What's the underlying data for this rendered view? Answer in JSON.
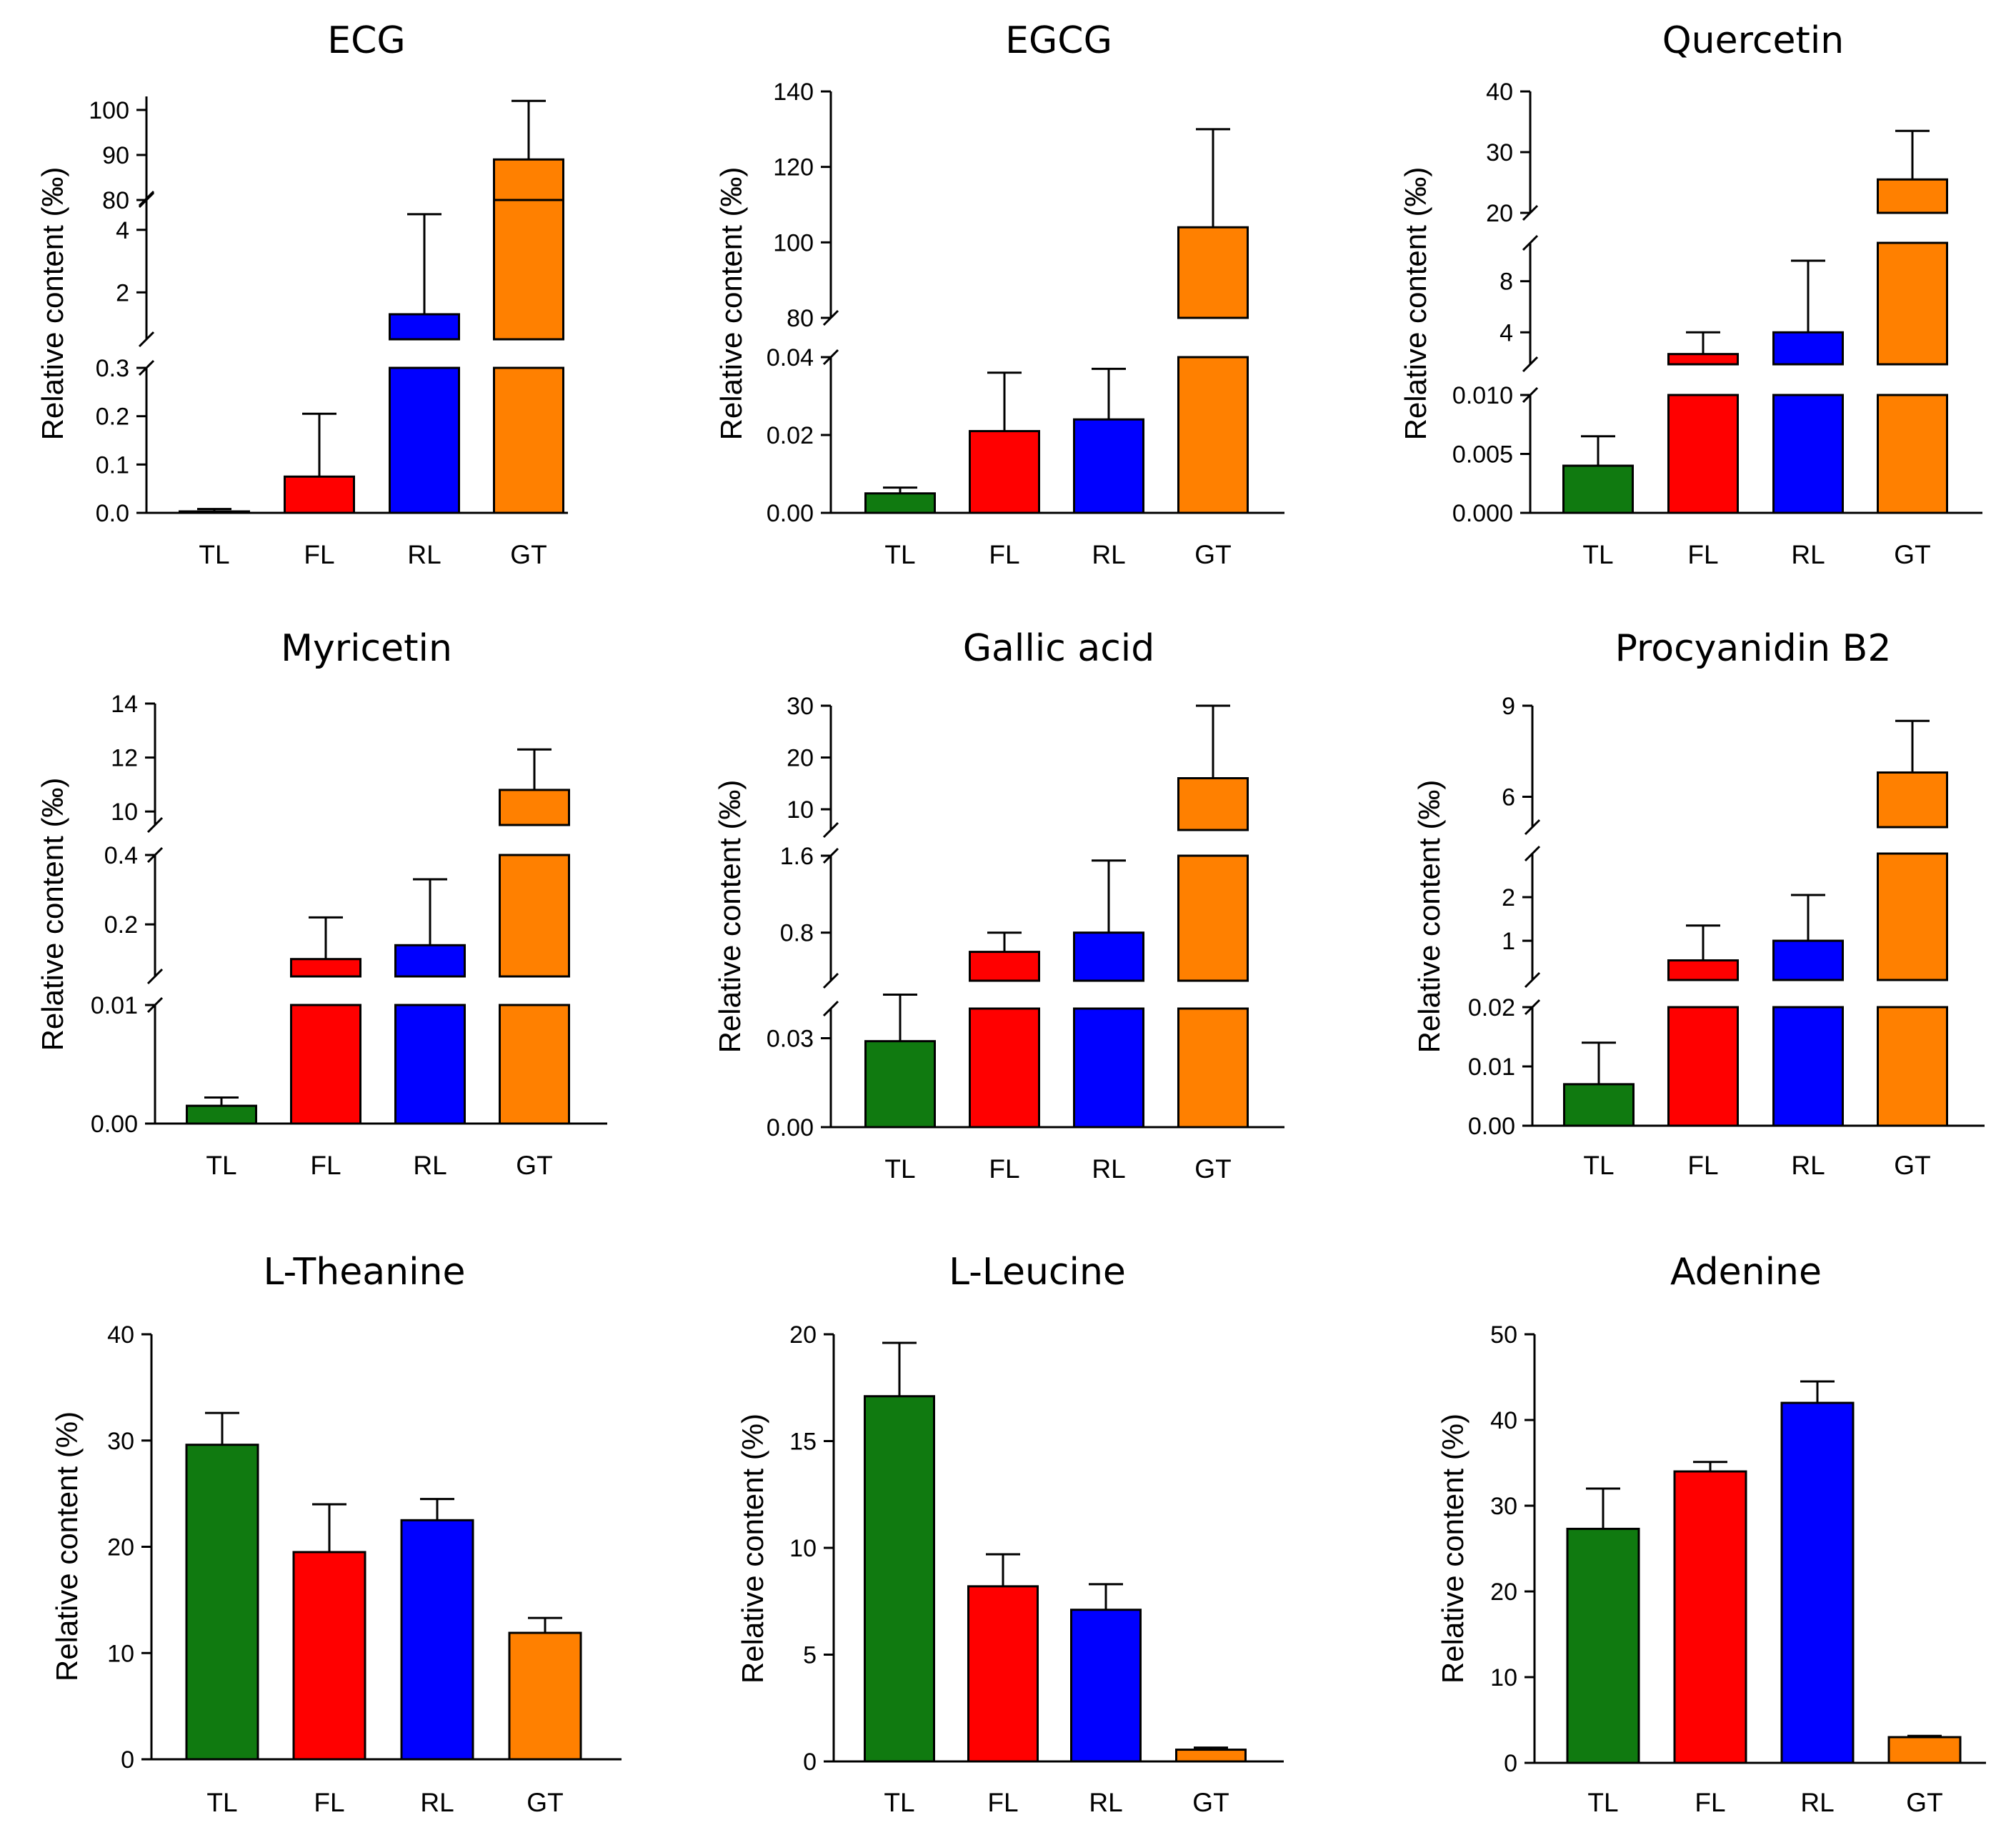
{
  "figure": {
    "categories": [
      "TL",
      "FL",
      "RL",
      "GT"
    ],
    "colors": {
      "TL": "#107a10",
      "FL": "#ff0000",
      "RL": "#0000ff",
      "GT": "#ff8000"
    }
  },
  "chart_data": [
    {
      "type": "bar",
      "title": "ECG",
      "ylabel": "Relative content (‰)",
      "categories": [
        "TL",
        "FL",
        "RL",
        "GT"
      ],
      "values": [
        0.003,
        0.075,
        1.3,
        89
      ],
      "errors": [
        0.005,
        0.13,
        3.2,
        13
      ],
      "axis_break": true,
      "segments": [
        {
          "range": [
            0,
            0.3
          ],
          "ticks": [
            "0.0",
            "0.1",
            "0.2",
            "0.3"
          ],
          "tickValues": [
            0,
            0.1,
            0.2,
            0.3
          ]
        },
        {
          "range": [
            0.5,
            5
          ],
          "ticks": [
            "2",
            "4"
          ],
          "tickValues": [
            2,
            4
          ]
        },
        {
          "range": [
            80,
            103
          ],
          "ticks": [
            "80",
            "90",
            "100"
          ],
          "tickValues": [
            80,
            90,
            100
          ]
        }
      ]
    },
    {
      "type": "bar",
      "title": "EGCG",
      "ylabel": "Relative content (‰)",
      "categories": [
        "TL",
        "FL",
        "RL",
        "GT"
      ],
      "values": [
        0.005,
        0.021,
        0.024,
        104
      ],
      "errors": [
        0.0015,
        0.015,
        0.013,
        26
      ],
      "axis_break": true,
      "segments": [
        {
          "range": [
            0,
            0.04
          ],
          "ticks": [
            "0.00",
            "0.02",
            "0.04"
          ],
          "tickValues": [
            0,
            0.02,
            0.04
          ]
        },
        {
          "range": [
            80,
            140
          ],
          "ticks": [
            "80",
            "100",
            "120",
            "140"
          ],
          "tickValues": [
            80,
            100,
            120,
            140
          ]
        }
      ]
    },
    {
      "type": "bar",
      "title": "Quercetin",
      "ylabel": "Relative content (‰)",
      "categories": [
        "TL",
        "FL",
        "RL",
        "GT"
      ],
      "values": [
        0.004,
        2.3,
        4.0,
        25.5
      ],
      "errors": [
        0.0025,
        1.7,
        5.6,
        8
      ],
      "axis_break": true,
      "segments": [
        {
          "range": [
            0,
            0.01
          ],
          "ticks": [
            "0.000",
            "0.005",
            "0.010"
          ],
          "tickValues": [
            0,
            0.005,
            0.01
          ]
        },
        {
          "range": [
            1.5,
            11
          ],
          "ticks": [
            "4",
            "8"
          ],
          "tickValues": [
            4,
            8
          ]
        },
        {
          "range": [
            20,
            40
          ],
          "ticks": [
            "20",
            "30",
            "40"
          ],
          "tickValues": [
            20,
            30,
            40
          ]
        }
      ]
    },
    {
      "type": "bar",
      "title": "Myricetin",
      "ylabel": "Relative content (‰)",
      "categories": [
        "TL",
        "FL",
        "RL",
        "GT"
      ],
      "values": [
        0.0015,
        0.1,
        0.14,
        10.8
      ],
      "errors": [
        0.0007,
        0.12,
        0.19,
        1.5
      ],
      "axis_break": true,
      "segments": [
        {
          "range": [
            0,
            0.01
          ],
          "ticks": [
            "0.00",
            "0.01"
          ],
          "tickValues": [
            0,
            0.01
          ]
        },
        {
          "range": [
            0.05,
            0.4
          ],
          "ticks": [
            "0.2",
            "0.4"
          ],
          "tickValues": [
            0.2,
            0.4
          ]
        },
        {
          "range": [
            9.5,
            14
          ],
          "ticks": [
            "10",
            "12",
            "14"
          ],
          "tickValues": [
            10,
            12,
            14
          ]
        }
      ]
    },
    {
      "type": "bar",
      "title": "Gallic acid",
      "ylabel": "Relative content (‰)",
      "categories": [
        "TL",
        "FL",
        "RL",
        "GT"
      ],
      "values": [
        0.029,
        0.6,
        0.8,
        16
      ],
      "errors": [
        0.012,
        0.2,
        0.75,
        14
      ],
      "axis_break": true,
      "segments": [
        {
          "range": [
            0,
            0.04
          ],
          "ticks": [
            "0.00",
            "0.03"
          ],
          "tickValues": [
            0,
            0.03
          ]
        },
        {
          "range": [
            0.3,
            1.6
          ],
          "ticks": [
            "0.8",
            "1.6"
          ],
          "tickValues": [
            0.8,
            1.6
          ]
        },
        {
          "range": [
            6,
            30
          ],
          "ticks": [
            "10",
            "20",
            "30"
          ],
          "tickValues": [
            10,
            20,
            30
          ]
        }
      ]
    },
    {
      "type": "bar",
      "title": "Procyanidin B2",
      "ylabel": "Relative content (‰)",
      "categories": [
        "TL",
        "FL",
        "RL",
        "GT"
      ],
      "values": [
        0.007,
        0.55,
        1.0,
        6.8
      ],
      "errors": [
        0.007,
        0.8,
        1.05,
        1.7
      ],
      "axis_break": true,
      "segments": [
        {
          "range": [
            0,
            0.02
          ],
          "ticks": [
            "0.00",
            "0.01",
            "0.02"
          ],
          "tickValues": [
            0,
            0.01,
            0.02
          ]
        },
        {
          "range": [
            0.1,
            3
          ],
          "ticks": [
            "1",
            "2"
          ],
          "tickValues": [
            1,
            2
          ]
        },
        {
          "range": [
            5,
            9
          ],
          "ticks": [
            "6",
            "9"
          ],
          "tickValues": [
            6,
            9
          ]
        }
      ]
    },
    {
      "type": "bar",
      "title": "L-Theanine",
      "ylabel": "Relative content (%)",
      "categories": [
        "TL",
        "FL",
        "RL",
        "GT"
      ],
      "values": [
        29.6,
        19.5,
        22.5,
        11.9
      ],
      "errors": [
        3.0,
        4.5,
        2.0,
        1.4
      ],
      "ylim": [
        0,
        40
      ],
      "ticks": [
        "0",
        "10",
        "20",
        "30",
        "40"
      ],
      "tickValues": [
        0,
        10,
        20,
        30,
        40
      ]
    },
    {
      "type": "bar",
      "title": "L-Leucine",
      "ylabel": "Relative content (%)",
      "categories": [
        "TL",
        "FL",
        "RL",
        "GT"
      ],
      "values": [
        17.1,
        8.2,
        7.1,
        0.55
      ],
      "errors": [
        2.5,
        1.5,
        1.2,
        0.1
      ],
      "ylim": [
        0,
        20
      ],
      "ticks": [
        "0",
        "5",
        "10",
        "15",
        "20"
      ],
      "tickValues": [
        0,
        5,
        10,
        15,
        20
      ]
    },
    {
      "type": "bar",
      "title": "Adenine",
      "ylabel": "Relative content (%)",
      "categories": [
        "TL",
        "FL",
        "RL",
        "GT"
      ],
      "values": [
        27.3,
        34.0,
        42.0,
        3.0
      ],
      "errors": [
        4.7,
        1.1,
        2.5,
        0.15
      ],
      "ylim": [
        0,
        50
      ],
      "ticks": [
        "0",
        "10",
        "20",
        "30",
        "40",
        "50"
      ],
      "tickValues": [
        0,
        10,
        20,
        30,
        40,
        50
      ]
    }
  ]
}
